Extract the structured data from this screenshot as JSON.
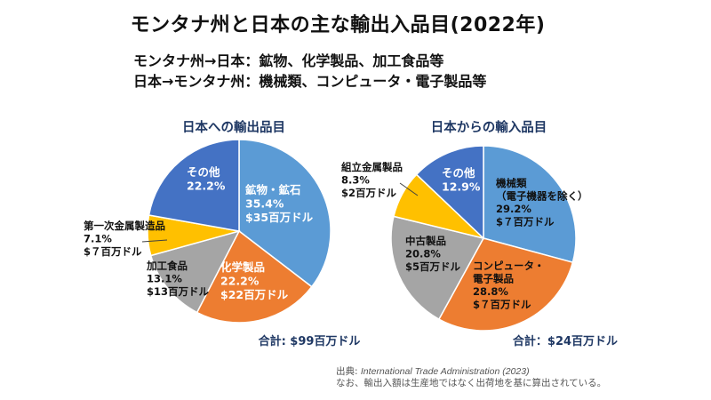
{
  "title": "モンタナ州と日本の主な輸出入品目(2022年)",
  "summary": {
    "line1": "モンタナ州→日本：鉱物、化学製品、加工食品等",
    "line2": "日本→モンタナ州：機械類、コンピュータ・電子製品等"
  },
  "source": {
    "prefix": "出典: ",
    "name": "International Trade Administration (2023)",
    "note": "なお、輸出入額は生産地ではなく出荷地を基に算出されている。"
  },
  "colors": {
    "blue_light": "#5B9BD5",
    "orange": "#ED7D31",
    "gray": "#A5A5A5",
    "yellow": "#FFC000",
    "blue_dark": "#4472C4",
    "title_blue": "#1F3864"
  },
  "chart_data": [
    {
      "type": "pie",
      "title": "日本への輸出品目",
      "total_label": "合計: $99百万ドル",
      "slices": [
        {
          "lines": [
            "鉱物・鉱石",
            "35.4%",
            "$35百万ドル"
          ],
          "value": 35.4,
          "color": "#5B9BD5"
        },
        {
          "lines": [
            "化学製品",
            "22.2%",
            "$22百万ドル"
          ],
          "value": 22.2,
          "color": "#ED7D31"
        },
        {
          "lines": [
            "加工食品",
            "13.1%",
            "$13百万ドル"
          ],
          "value": 13.1,
          "color": "#A5A5A5"
        },
        {
          "lines": [
            "第一次金属製造品",
            "7.1%",
            "$７百万ドル"
          ],
          "value": 7.1,
          "color": "#FFC000"
        },
        {
          "lines": [
            "その他",
            "22.2%"
          ],
          "value": 22.2,
          "color": "#4472C4"
        }
      ]
    },
    {
      "type": "pie",
      "title": "日本からの輸入品目",
      "total_label": "合計：$24百万ドル",
      "slices": [
        {
          "lines": [
            "機械類",
            "（電子機器を除く）",
            "29.2%",
            "$７百万ドル"
          ],
          "value": 29.2,
          "color": "#5B9BD5"
        },
        {
          "lines": [
            "コンピュータ・",
            "電子製品",
            "28.8%",
            "$７百万ドル"
          ],
          "value": 28.8,
          "color": "#ED7D31"
        },
        {
          "lines": [
            "中古製品",
            "20.8%",
            "$5百万ドル"
          ],
          "value": 20.8,
          "color": "#A5A5A5"
        },
        {
          "lines": [
            "組立金属製品",
            "8.3%",
            "$2百万ドル"
          ],
          "value": 8.3,
          "color": "#FFC000"
        },
        {
          "lines": [
            "その他",
            "12.9%"
          ],
          "value": 12.9,
          "color": "#4472C4"
        }
      ]
    }
  ]
}
